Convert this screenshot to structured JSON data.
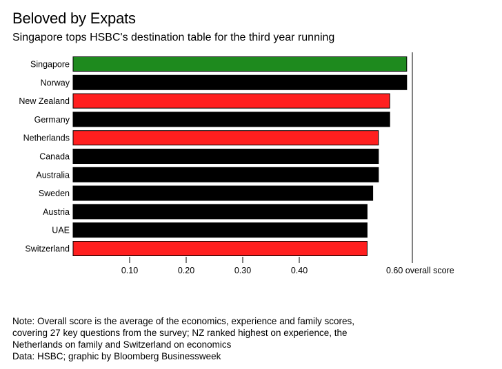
{
  "chart_data": {
    "type": "bar",
    "orientation": "horizontal",
    "title": "Beloved by Expats",
    "subtitle": "Singapore tops HSBC's destination table for the third year running",
    "categories": [
      "Singapore",
      "Norway",
      "New Zealand",
      "Germany",
      "Netherlands",
      "Canada",
      "Australia",
      "Sweden",
      "Austria",
      "UAE",
      "Switzerland"
    ],
    "values": [
      0.59,
      0.59,
      0.56,
      0.56,
      0.54,
      0.54,
      0.54,
      0.53,
      0.52,
      0.52,
      0.52
    ],
    "bar_colors": [
      "#1e8a1e",
      "#000000",
      "#ff1f1f",
      "#000000",
      "#ff1f1f",
      "#000000",
      "#000000",
      "#000000",
      "#000000",
      "#000000",
      "#ff1f1f"
    ],
    "x_ticks": [
      {
        "value": 0.1,
        "label": "0.10"
      },
      {
        "value": 0.2,
        "label": "0.20"
      },
      {
        "value": 0.3,
        "label": "0.30"
      },
      {
        "value": 0.4,
        "label": "0.40"
      },
      {
        "value": 0.6,
        "label": "0.60 overall score"
      }
    ],
    "xlim": [
      0,
      0.6
    ],
    "xlabel": "",
    "ylabel": "",
    "grid": false
  },
  "footer": {
    "note_lines": [
      "Note: Overall score is the average of the economics, experience and family scores,",
      "covering 27 key questions from the survey; NZ ranked highest on experience, the",
      "Netherlands on family and Switzerland on economics",
      "Data: HSBC; graphic by Bloomberg Businessweek"
    ]
  }
}
